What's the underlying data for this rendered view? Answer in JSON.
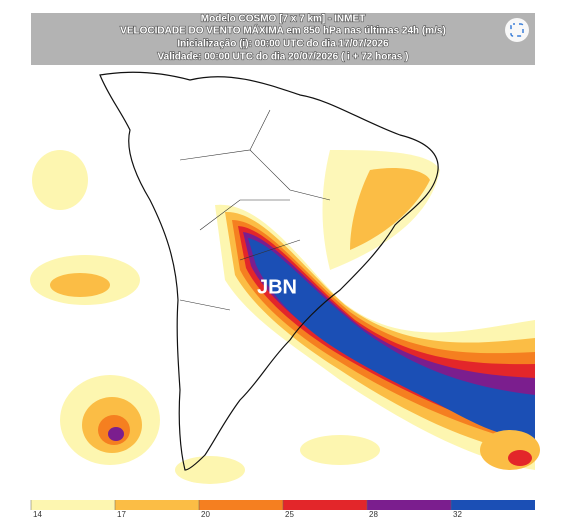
{
  "header": {
    "model": "Modelo COSMO [7 x 7 km] - INMET",
    "title": "VELOCIDADE DO VENTO MÁXIMA em 850 hPa nas últimas 24h (m/s)",
    "init": "Inicialização (i): 00:00 UTC do dia 17/07/2026",
    "valid": "Validade: 00:00 UTC do dia 20/07/2026 ( i + 72 horas )"
  },
  "annotation": "JBN",
  "colorbar": {
    "ticks": [
      14,
      17,
      20,
      25,
      28,
      32
    ],
    "colors": [
      "#fdf6b0",
      "#fbbd45",
      "#f57f20",
      "#e3262a",
      "#7b1e8e",
      "#1b4fb5"
    ]
  }
}
